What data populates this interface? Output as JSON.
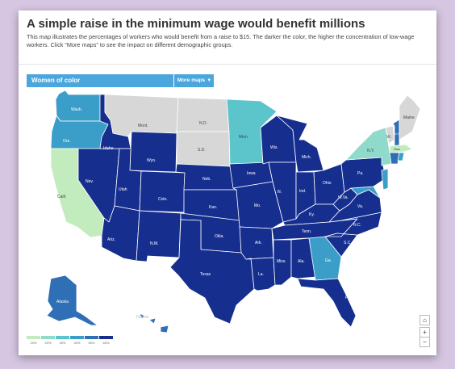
{
  "title": "A simple raise in the minimum wage would benefit millions",
  "subtitle": "This map illustrates the percentages of workers who would benefit from a raise to $15. The darker the color, the higher the concentration of low-wage workers. Click “More maps” to see the impact on different demographic groups.",
  "selector": {
    "label": "Women of color",
    "button_label": "More maps",
    "button_icon": "caret-down-icon"
  },
  "colors": {
    "no_data": "#d7d7d7",
    "c10": "#c3ecbe",
    "c20": "#8fdacb",
    "c30": "#5cc4cb",
    "c40": "#3b9ec9",
    "c50": "#2e6fb6",
    "c60": "#162f8f",
    "water": "#ffffff"
  },
  "legend": {
    "ticks": [
      "10%",
      "20%",
      "30%",
      "40%",
      "50%",
      "60%"
    ]
  },
  "states": {
    "wash": "Wash.",
    "ore": "Ore.",
    "calif": "Calif.",
    "nev": "Nev.",
    "idaho": "Idaho",
    "mont": "Mont.",
    "wyo": "Wyo.",
    "utah": "Utah",
    "ariz": "Ariz.",
    "colo": "Colo.",
    "nm": "N.M.",
    "nd": "N.D.",
    "sd": "S.D.",
    "neb": "Neb.",
    "kan": "Kan.",
    "okla": "Okla.",
    "texas": "Texas",
    "minn": "Minn.",
    "iowa": "Iowa",
    "mo": "Mo.",
    "ark": "Ark.",
    "la": "La.",
    "wis": "Wis.",
    "ill": "Ill.",
    "mich": "Mich.",
    "ind": "Ind.",
    "ohio": "Ohio",
    "ky": "Ky.",
    "tenn": "Tenn.",
    "miss": "Miss.",
    "ala": "Ala.",
    "ga": "Ga.",
    "fla": "Fla.",
    "sc": "S.C.",
    "nc": "N.C.",
    "va": "Va.",
    "wva": "W.Va.",
    "pa": "Pa.",
    "ny": "N.Y.",
    "vt": "Vt.",
    "nh": "N.H.",
    "maine": "Maine",
    "mass": "Mass.",
    "alaska": "Alaska",
    "hawaii": "Hawaii"
  },
  "controls": {
    "home": "⌂",
    "zoom_in": "+",
    "zoom_out": "−"
  }
}
